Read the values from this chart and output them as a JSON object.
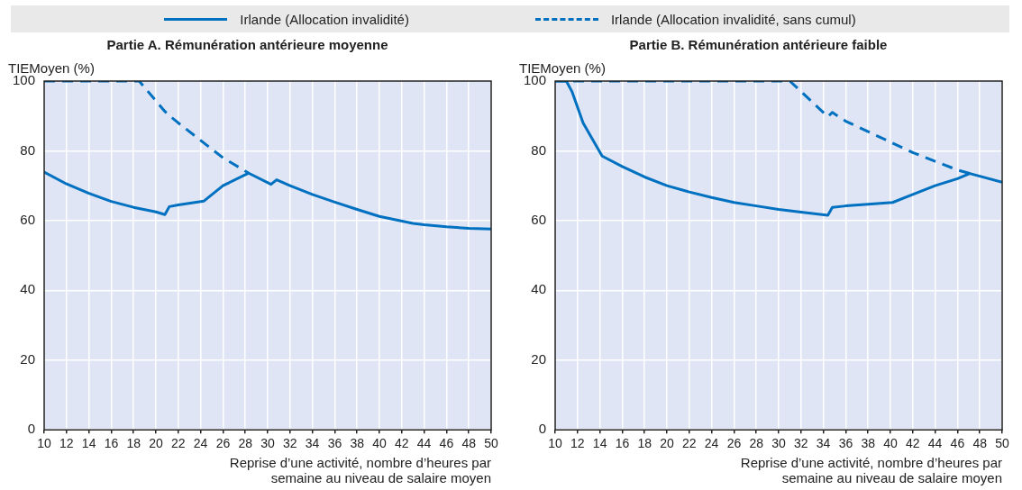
{
  "chart_data": [
    {
      "type": "line",
      "title": "Partie A. Rémunération antérieure moyenne",
      "ylabel": "TIEMoyen (%)",
      "xlabel": "Reprise d’une activité, nombre d’heures par semaine au niveau de salaire moyen",
      "xlim": [
        10,
        50
      ],
      "xticks": [
        10,
        12,
        14,
        16,
        18,
        20,
        22,
        24,
        26,
        28,
        30,
        32,
        34,
        36,
        38,
        40,
        42,
        44,
        46,
        48,
        50
      ],
      "ylim": [
        0,
        100
      ],
      "yticks": [
        0,
        20,
        40,
        60,
        80,
        100
      ],
      "grid": true,
      "legend": "top",
      "marker": "none",
      "series": [
        {
          "name": "Irlande (Allocation invalidité)",
          "color": "#0070c0",
          "line_style": "solid",
          "x": [
            10,
            12,
            14,
            16,
            18,
            20,
            20.8,
            21.2,
            22,
            24.3,
            26,
            28.3,
            30.3,
            30.8,
            32,
            34,
            36,
            38,
            40,
            43,
            44,
            46,
            48,
            50
          ],
          "values": [
            73.9,
            70.5,
            67.8,
            65.5,
            63.8,
            62.5,
            61.7,
            64,
            64.5,
            65.6,
            70,
            73.6,
            70.4,
            71.7,
            70,
            67.5,
            65.3,
            63.2,
            61.2,
            59.2,
            58.8,
            58.2,
            57.8,
            57.6
          ]
        },
        {
          "name": "Irlande (Allocation invalidité, sans cumul)",
          "color": "#0070c0",
          "line_style": "dashed",
          "x": [
            10,
            18.5,
            20.8,
            21.2,
            22,
            24,
            26,
            28.3
          ],
          "values": [
            100,
            100,
            91.3,
            90.1,
            88,
            83,
            78,
            73.6
          ]
        }
      ]
    },
    {
      "type": "line",
      "title": "Partie B. Rémunération antérieure faible",
      "ylabel": "TIEMoyen (%)",
      "xlabel": "Reprise d’une activité, nombre d’heures par semaine au niveau de salaire moyen",
      "xlim": [
        10,
        50
      ],
      "xticks": [
        10,
        12,
        14,
        16,
        18,
        20,
        22,
        24,
        26,
        28,
        30,
        32,
        34,
        36,
        38,
        40,
        42,
        44,
        46,
        48,
        50
      ],
      "ylim": [
        0,
        100
      ],
      "yticks": [
        0,
        20,
        40,
        60,
        80,
        100
      ],
      "grid": true,
      "legend": "top",
      "marker": "none",
      "series": [
        {
          "name": "Irlande (Allocation invalidité)",
          "color": "#0070c0",
          "line_style": "solid",
          "x": [
            10,
            11,
            11.5,
            12.5,
            14.2,
            16,
            18,
            20,
            22,
            24,
            26,
            28,
            30,
            32,
            34.4,
            34.8,
            36,
            38,
            40.2,
            42,
            44,
            46,
            47.1,
            50
          ],
          "values": [
            100,
            100,
            97,
            88,
            78.5,
            75.5,
            72.5,
            70,
            68.2,
            66.6,
            65.2,
            64.2,
            63.2,
            62.4,
            61.5,
            63.8,
            64.2,
            64.7,
            65.2,
            67.5,
            70,
            72,
            73.5,
            71
          ]
        },
        {
          "name": "Irlande (Allocation invalidité, sans cumul)",
          "color": "#0070c0",
          "line_style": "dashed",
          "x": [
            10,
            31,
            34.4,
            34.8,
            36,
            38,
            40,
            42,
            44,
            46,
            47.1
          ],
          "values": [
            100,
            100,
            89.8,
            91,
            88.5,
            85.5,
            82.5,
            79.5,
            77,
            74.5,
            73.5
          ]
        }
      ]
    }
  ]
}
